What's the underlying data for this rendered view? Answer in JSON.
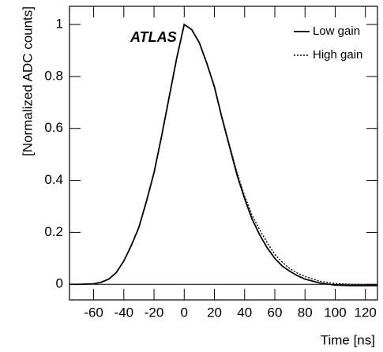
{
  "chart_data": {
    "type": "line",
    "annotation": "ATLAS",
    "xlabel": "Time [ns]",
    "ylabel": "[Normalized ADC counts]",
    "x": [
      -76,
      -70,
      -60,
      -55,
      -50,
      -45,
      -40,
      -35,
      -30,
      -25,
      -20,
      -15,
      -10,
      -5,
      0,
      5,
      10,
      15,
      20,
      25,
      30,
      35,
      40,
      45,
      50,
      55,
      60,
      65,
      70,
      75,
      80,
      90,
      100,
      110,
      128
    ],
    "series": [
      {
        "name": "Low gain",
        "color": "#000000",
        "dash": "solid",
        "values": [
          0,
          0,
          0.002,
          0.008,
          0.02,
          0.045,
          0.09,
          0.15,
          0.22,
          0.32,
          0.43,
          0.57,
          0.72,
          0.87,
          1.0,
          0.98,
          0.93,
          0.85,
          0.76,
          0.64,
          0.53,
          0.42,
          0.33,
          0.25,
          0.19,
          0.14,
          0.1,
          0.07,
          0.05,
          0.033,
          0.02,
          0.005,
          -0.003,
          -0.005,
          -0.005
        ]
      },
      {
        "name": "High gain",
        "color": "#000000",
        "dash": "dotted",
        "values": [
          0,
          0,
          0.002,
          0.008,
          0.02,
          0.045,
          0.09,
          0.15,
          0.22,
          0.32,
          0.43,
          0.57,
          0.72,
          0.87,
          1.0,
          0.98,
          0.93,
          0.85,
          0.76,
          0.645,
          0.535,
          0.43,
          0.34,
          0.265,
          0.21,
          0.16,
          0.115,
          0.085,
          0.06,
          0.043,
          0.03,
          0.012,
          0.003,
          0,
          -0.002
        ]
      }
    ],
    "xlim": [
      -76,
      128
    ],
    "ylim": [
      -0.06,
      1.07
    ],
    "xticks": [
      -60,
      -40,
      -20,
      0,
      20,
      40,
      60,
      80,
      100,
      120
    ],
    "yticks": [
      0,
      0.2,
      0.4,
      0.6,
      0.8,
      1
    ],
    "zero_line": true,
    "legend": "top-right"
  }
}
